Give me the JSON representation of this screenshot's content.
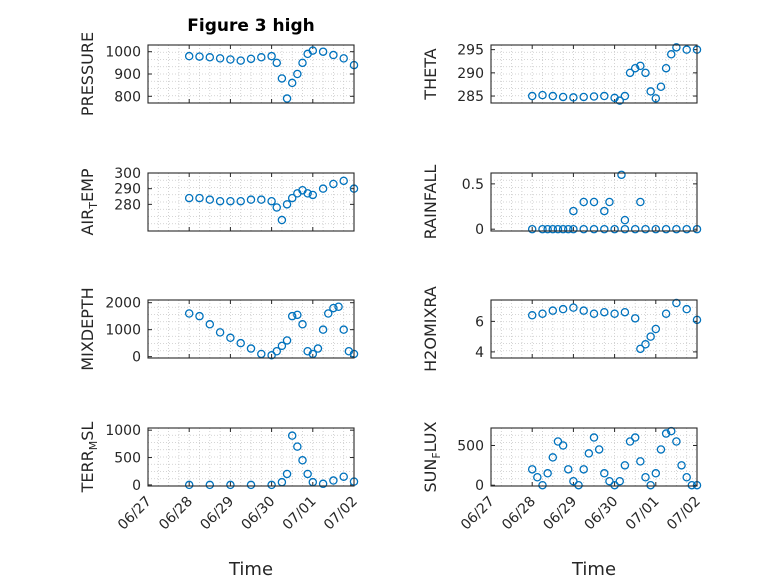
{
  "figure": {
    "title": "Figure 3 high",
    "xlabel": "Time",
    "date_ticks": [
      "06/27",
      "06/28",
      "06/29",
      "06/30",
      "07/01",
      "07/02"
    ]
  },
  "colors": {
    "marker": "#0072bd",
    "axis": "#262626",
    "grid": "#c8c8c8"
  },
  "chart_data": [
    {
      "type": "scatter",
      "ylabel": "PRESSURE",
      "ylabel_sub": "",
      "ylabel_end": "",
      "ylim": [
        770,
        1030
      ],
      "yticks": [
        800,
        900,
        1000
      ],
      "grid": true,
      "x": [
        "06/28 00:00",
        "06/28 06:00",
        "06/28 12:00",
        "06/28 18:00",
        "06/29 00:00",
        "06/29 06:00",
        "06/29 12:00",
        "06/29 18:00",
        "06/30 00:00",
        "06/30 03:00",
        "06/30 06:00",
        "06/30 09:00",
        "06/30 12:00",
        "06/30 15:00",
        "06/30 18:00",
        "06/30 21:00",
        "07/01 00:00",
        "07/01 06:00",
        "07/01 12:00",
        "07/01 18:00",
        "07/02 00:00"
      ],
      "y": [
        980,
        978,
        975,
        970,
        965,
        960,
        968,
        975,
        980,
        950,
        880,
        790,
        860,
        900,
        950,
        990,
        1005,
        1000,
        985,
        970,
        940
      ]
    },
    {
      "type": "scatter",
      "ylabel": "THETA",
      "ylabel_sub": "",
      "ylabel_end": "",
      "ylim": [
        283.5,
        296
      ],
      "yticks": [
        285,
        290,
        295
      ],
      "grid": true,
      "x": [
        "06/28 00:00",
        "06/28 06:00",
        "06/28 12:00",
        "06/28 18:00",
        "06/29 00:00",
        "06/29 06:00",
        "06/29 12:00",
        "06/29 18:00",
        "06/30 00:00",
        "06/30 03:00",
        "06/30 06:00",
        "06/30 09:00",
        "06/30 12:00",
        "06/30 15:00",
        "06/30 18:00",
        "06/30 21:00",
        "07/01 00:00",
        "07/01 03:00",
        "07/01 06:00",
        "07/01 09:00",
        "07/01 12:00",
        "07/01 18:00",
        "07/02 00:00"
      ],
      "y": [
        285,
        285.2,
        285,
        284.8,
        284.7,
        284.8,
        284.9,
        285,
        284.6,
        284,
        285,
        290,
        291,
        291.5,
        290,
        286,
        284.5,
        287,
        291,
        294,
        295.5,
        295,
        295
      ]
    },
    {
      "type": "scatter",
      "ylabel": "AIR",
      "ylabel_sub": "T",
      "ylabel_end": "EMP",
      "ylim": [
        263,
        300
      ],
      "yticks": [
        280,
        290,
        300
      ],
      "grid": true,
      "x": [
        "06/28 00:00",
        "06/28 06:00",
        "06/28 12:00",
        "06/28 18:00",
        "06/29 00:00",
        "06/29 06:00",
        "06/29 12:00",
        "06/29 18:00",
        "06/30 00:00",
        "06/30 03:00",
        "06/30 06:00",
        "06/30 09:00",
        "06/30 12:00",
        "06/30 15:00",
        "06/30 18:00",
        "06/30 21:00",
        "07/01 00:00",
        "07/01 06:00",
        "07/01 12:00",
        "07/01 18:00",
        "07/02 00:00"
      ],
      "y": [
        284,
        284,
        283,
        282,
        282,
        282,
        283,
        283,
        282,
        278,
        270,
        280,
        284,
        287,
        289,
        287,
        286,
        290,
        293,
        295,
        290
      ]
    },
    {
      "type": "scatter",
      "ylabel": "RAINFALL",
      "ylabel_sub": "",
      "ylabel_end": "",
      "ylim": [
        -0.02,
        0.62
      ],
      "yticks": [
        0,
        0.5
      ],
      "grid": true,
      "x": [
        "06/28 00:00",
        "06/28 06:00",
        "06/28 09:00",
        "06/28 12:00",
        "06/28 15:00",
        "06/28 18:00",
        "06/28 21:00",
        "06/29 00:00",
        "06/29 06:00",
        "06/29 12:00",
        "06/29 18:00",
        "06/30 00:00",
        "06/30 06:00",
        "06/30 12:00",
        "06/30 18:00",
        "07/01 00:00",
        "07/01 06:00",
        "07/01 12:00",
        "07/01 18:00",
        "07/02 00:00",
        "06/29 00:00",
        "06/29 06:00",
        "06/29 12:00",
        "06/29 18:00",
        "06/29 21:00",
        "06/30 04:00",
        "06/30 06:00",
        "06/30 15:00"
      ],
      "y": [
        0,
        0,
        0,
        0,
        0,
        0,
        0,
        0,
        0,
        0,
        0,
        0,
        0,
        0,
        0,
        0,
        0,
        0,
        0,
        0,
        0.2,
        0.3,
        0.3,
        0.2,
        0.3,
        0.6,
        0.1,
        0.3
      ]
    },
    {
      "type": "scatter",
      "ylabel": "MIXDEPTH",
      "ylabel_sub": "",
      "ylabel_end": "",
      "ylim": [
        -50,
        2100
      ],
      "yticks": [
        0,
        1000,
        2000
      ],
      "grid": true,
      "x": [
        "06/28 00:00",
        "06/28 06:00",
        "06/28 12:00",
        "06/28 18:00",
        "06/29 00:00",
        "06/29 06:00",
        "06/29 12:00",
        "06/29 18:00",
        "06/30 00:00",
        "06/30 03:00",
        "06/30 06:00",
        "06/30 09:00",
        "06/30 12:00",
        "06/30 15:00",
        "06/30 18:00",
        "06/30 21:00",
        "07/01 00:00",
        "07/01 03:00",
        "07/01 06:00",
        "07/01 09:00",
        "07/01 12:00",
        "07/01 15:00",
        "07/01 18:00",
        "07/01 21:00",
        "07/02 00:00"
      ],
      "y": [
        1600,
        1500,
        1200,
        900,
        700,
        500,
        300,
        100,
        50,
        200,
        400,
        600,
        1500,
        1550,
        1200,
        200,
        100,
        300,
        1000,
        1600,
        1800,
        1850,
        1000,
        200,
        100
      ]
    },
    {
      "type": "scatter",
      "ylabel": "H2OMIXRA",
      "ylabel_sub": "",
      "ylabel_end": "",
      "ylim": [
        3.6,
        7.4
      ],
      "yticks": [
        4,
        6
      ],
      "grid": true,
      "x": [
        "06/28 00:00",
        "06/28 06:00",
        "06/28 12:00",
        "06/28 18:00",
        "06/29 00:00",
        "06/29 06:00",
        "06/29 12:00",
        "06/29 18:00",
        "06/30 00:00",
        "06/30 06:00",
        "06/30 12:00",
        "06/30 15:00",
        "06/30 18:00",
        "06/30 21:00",
        "07/01 00:00",
        "07/01 06:00",
        "07/01 12:00",
        "07/01 18:00",
        "07/02 00:00"
      ],
      "y": [
        6.4,
        6.5,
        6.7,
        6.8,
        6.9,
        6.7,
        6.5,
        6.6,
        6.5,
        6.6,
        6.2,
        4.2,
        4.5,
        5,
        5.5,
        6.5,
        7.2,
        6.8,
        6.1
      ]
    },
    {
      "type": "scatter",
      "ylabel": "TERR",
      "ylabel_sub": "M",
      "ylabel_end": "SL",
      "ylim": [
        -20,
        1040
      ],
      "yticks": [
        0,
        500,
        1000
      ],
      "grid": true,
      "x": [
        "06/28 00:00",
        "06/28 12:00",
        "06/29 00:00",
        "06/29 12:00",
        "06/30 00:00",
        "06/30 06:00",
        "06/30 09:00",
        "06/30 12:00",
        "06/30 15:00",
        "06/30 18:00",
        "06/30 21:00",
        "07/01 00:00",
        "07/01 06:00",
        "07/01 12:00",
        "07/01 18:00",
        "07/02 00:00"
      ],
      "y": [
        0,
        0,
        0,
        0,
        0,
        50,
        200,
        900,
        700,
        450,
        200,
        50,
        20,
        80,
        150,
        60
      ]
    },
    {
      "type": "scatter",
      "ylabel": "SUN",
      "ylabel_sub": "F",
      "ylabel_end": "LUX",
      "ylim": [
        -10,
        720
      ],
      "yticks": [
        0,
        500
      ],
      "grid": true,
      "x": [
        "06/28 00:00",
        "06/28 03:00",
        "06/28 06:00",
        "06/28 09:00",
        "06/28 12:00",
        "06/28 15:00",
        "06/28 18:00",
        "06/28 21:00",
        "06/29 00:00",
        "06/29 03:00",
        "06/29 06:00",
        "06/29 09:00",
        "06/29 12:00",
        "06/29 15:00",
        "06/29 18:00",
        "06/29 21:00",
        "06/30 00:00",
        "06/30 03:00",
        "06/30 06:00",
        "06/30 09:00",
        "06/30 12:00",
        "06/30 15:00",
        "06/30 18:00",
        "06/30 21:00",
        "07/01 00:00",
        "07/01 03:00",
        "07/01 06:00",
        "07/01 09:00",
        "07/01 12:00",
        "07/01 15:00",
        "07/01 18:00",
        "07/01 21:00",
        "07/02 00:00"
      ],
      "y": [
        200,
        100,
        0,
        150,
        350,
        550,
        500,
        200,
        50,
        0,
        200,
        400,
        600,
        450,
        150,
        50,
        0,
        50,
        250,
        550,
        600,
        300,
        100,
        0,
        150,
        450,
        650,
        680,
        550,
        250,
        100,
        0,
        0
      ]
    }
  ]
}
